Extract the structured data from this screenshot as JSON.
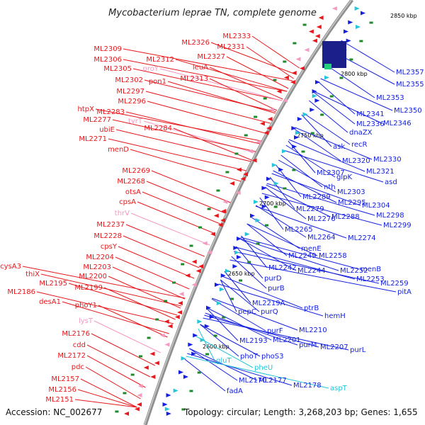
{
  "title": "Mycobacterium leprae TN, complete genome",
  "footer": {
    "accession": "Accession: NC_002677",
    "topology": "Topology: circular; Length: 3,268,203 bp; Genes: 1,655"
  },
  "colors": {
    "minus_strand": "#e8171c",
    "plus_strand": "#1520e0",
    "pseudo_minus": "#f49ac1",
    "pseudo_plus": "#26c5d8",
    "backbone": "#9a9a9a",
    "tick_marker": "#1f8a2a"
  },
  "kbp_ticks": [
    "2850 kbp",
    "2800 kbp",
    "2750 kbp",
    "2700 kbp",
    "2650 kbp",
    "2600 kbp"
  ],
  "left_labels": [
    "ML2333",
    "ML2326",
    "ML2331",
    "ML2309",
    "ML2327",
    "ML2306",
    "ML2312",
    "leuA",
    "ML2305",
    "proY",
    "ML2313",
    "ML2302",
    "pon1",
    "ML2297",
    "ML2296",
    "htpX",
    "ML2283",
    "tyrT",
    "ML2277",
    "ML2284",
    "ubiE",
    "ML2271",
    "menD",
    "ML2269",
    "ML2268",
    "otsA",
    "cpsA",
    "thrV",
    "ML2237",
    "ML2228",
    "cpsY",
    "ML2204",
    "cysA3",
    "ML2203",
    "thiX",
    "ML2200",
    "ML2195",
    "ML2199",
    "ML2186",
    "desA1",
    "phoY1",
    "lysT",
    "ML2176",
    "cdd",
    "ML2172",
    "pdc",
    "ML2157",
    "ML2156",
    "ML2151"
  ],
  "right_labels": [
    "ML2357",
    "ML2355",
    "ML2353",
    "ML2341",
    "ML2350",
    "ML2336",
    "ML2346",
    "dnaZX",
    "recR",
    "ask",
    "ML2330",
    "ML2320",
    "ML2321",
    "ML2307",
    "asd",
    "glpK",
    "nth",
    "ML2303",
    "ML2289",
    "ML2295",
    "ML2304",
    "ML2279",
    "ML2298",
    "ML2288",
    "ML2276",
    "ML2299",
    "ML2265",
    "ML2264",
    "ML2274",
    "menE",
    "ML2249",
    "ML2258",
    "ML2242",
    "menB",
    "ML2244",
    "ML2252",
    "ML2253",
    "ML2259",
    "purD",
    "pitA",
    "purB",
    "ML2219A",
    "ptrB",
    "pepC",
    "purQ",
    "hemH",
    "purF",
    "ML2210",
    "ML2193",
    "ML2201",
    "purM",
    "ML2207",
    "purL",
    "phoT",
    "phoS3",
    "gluT",
    "pheU",
    "ML2170",
    "ML2177",
    "ML2178",
    "aspT",
    "fadA"
  ]
}
